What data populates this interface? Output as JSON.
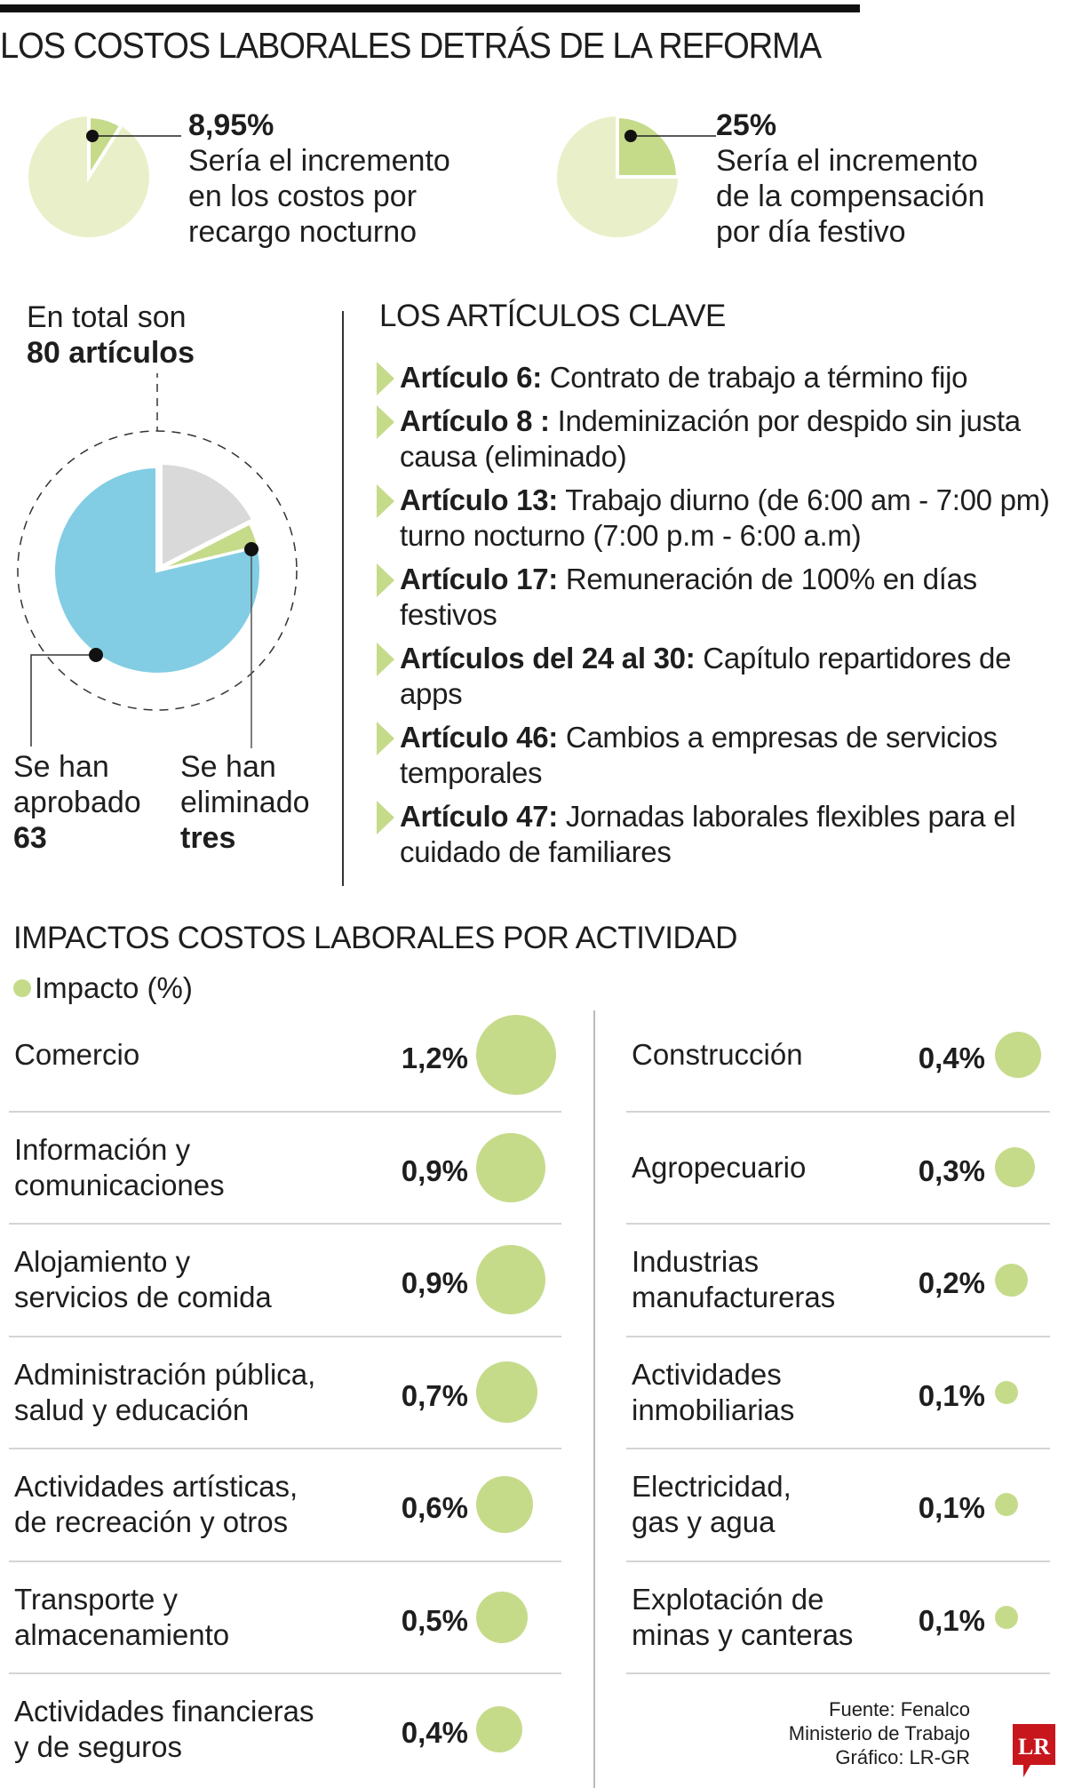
{
  "title": "LOS COSTOS LABORALES DETRÁS DE LA REFORMA",
  "colors": {
    "light_green": "#e9f0c9",
    "green": "#c5db8a",
    "blue": "#82cde4",
    "gray": "#d9d9d9",
    "logo_red": "#c8161d"
  },
  "stats": [
    {
      "value": "8,95%",
      "fraction": 0.0895,
      "lines": [
        "Sería el incremento",
        "en los costos por",
        "recargo nocturno"
      ]
    },
    {
      "value": "25%",
      "fraction": 0.25,
      "lines": [
        "Sería el incremento",
        "de la compensación",
        "por día festivo"
      ]
    }
  ],
  "articles_total": {
    "intro": "En total son",
    "total": "80 artículos",
    "total_value": 80,
    "approved": {
      "lines": [
        "Se han",
        "aprobado"
      ],
      "value": "63",
      "count": 63
    },
    "eliminated": {
      "lines": [
        "Se han",
        "eliminado"
      ],
      "value": "tres",
      "count": 3
    }
  },
  "key_articles": {
    "heading": "LOS ARTÍCULOS CLAVE",
    "items": [
      {
        "label": "Artículo 6:",
        "text": "Contrato de trabajo a término fijo"
      },
      {
        "label": "Artículo 8 :",
        "text": "Indeminización por despido sin justa causa (eliminado)"
      },
      {
        "label": "Artículo 13:",
        "text": "Trabajo diurno (de 6:00 am - 7:00 pm) turno nocturno (7:00 p.m - 6:00 a.m)"
      },
      {
        "label": "Artículo 17:",
        "text": "Remuneración de 100% en días festivos"
      },
      {
        "label": "Artículos del 24 al 30:",
        "text": "Capítulo repartidores de apps"
      },
      {
        "label": "Artículo 46:",
        "text": "Cambios a empresas de servicios temporales"
      },
      {
        "label": "Artículo 47:",
        "text": "Jornadas laborales flexibles para el cuidado de familiares"
      }
    ]
  },
  "chart_data": {
    "type": "bubble",
    "title": "IMPACTOS COSTOS LABORALES POR ACTIVIDAD",
    "legend": "Impacto (%)",
    "unit": "%",
    "left": [
      {
        "label": [
          "Comercio"
        ],
        "value": 1.2,
        "display": "1,2%"
      },
      {
        "label": [
          "Información y",
          "comunicaciones"
        ],
        "value": 0.9,
        "display": "0,9%"
      },
      {
        "label": [
          "Alojamiento y",
          "servicios de comida"
        ],
        "value": 0.9,
        "display": "0,9%"
      },
      {
        "label": [
          "Administración pública,",
          "salud y educación"
        ],
        "value": 0.7,
        "display": "0,7%"
      },
      {
        "label": [
          "Actividades artísticas,",
          "de recreación y otros"
        ],
        "value": 0.6,
        "display": "0,6%"
      },
      {
        "label": [
          "Transporte y",
          "almacenamiento"
        ],
        "value": 0.5,
        "display": "0,5%"
      },
      {
        "label": [
          "Actividades financieras",
          "y de seguros"
        ],
        "value": 0.4,
        "display": "0,4%"
      }
    ],
    "right": [
      {
        "label": [
          "Construcción"
        ],
        "value": 0.4,
        "display": "0,4%"
      },
      {
        "label": [
          "Agropecuario"
        ],
        "value": 0.3,
        "display": "0,3%"
      },
      {
        "label": [
          "Industrias",
          "manufactureras"
        ],
        "value": 0.2,
        "display": "0,2%"
      },
      {
        "label": [
          "Actividades",
          "inmobiliarias"
        ],
        "value": 0.1,
        "display": "0,1%"
      },
      {
        "label": [
          "Electricidad,",
          "gas y agua"
        ],
        "value": 0.1,
        "display": "0,1%"
      },
      {
        "label": [
          "Explotación de",
          "minas y canteras"
        ],
        "value": 0.1,
        "display": "0,1%"
      }
    ]
  },
  "footer": {
    "lines": [
      "Fuente: Fenalco",
      "Ministerio de Trabajo",
      "Gráfico: LR-GR"
    ],
    "logo": "LR"
  }
}
